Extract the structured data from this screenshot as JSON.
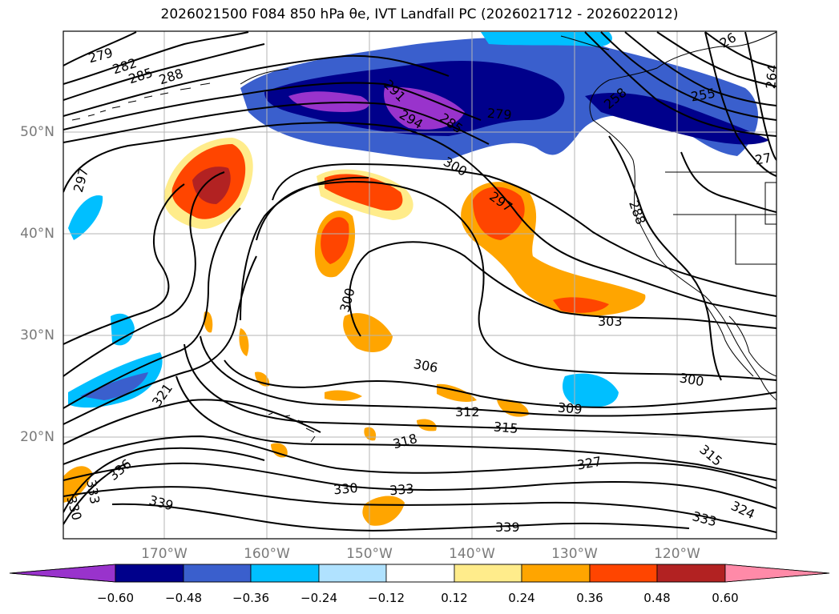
{
  "title": "2026021500 F084 850 hPa θe, IVT Landfall PC (2026021712 - 2026022012)",
  "lat_labels": [
    "50°N",
    "40°N",
    "30°N",
    "20°N"
  ],
  "lon_labels": [
    "170°W",
    "160°W",
    "150°W",
    "140°W",
    "130°W",
    "120°W"
  ],
  "colorbar": {
    "colors": [
      "#9933cc",
      "#00008b",
      "#3a5fcd",
      "#00bfff",
      "#b0e2ff",
      "#ffffff",
      "#ffec8b",
      "#ffa500",
      "#ff4500",
      "#b22222",
      "#ff8aa8"
    ],
    "tick_labels": [
      "−0.60",
      "−0.48",
      "−0.36",
      "−0.24",
      "−0.12",
      "0.12",
      "0.24",
      "0.36",
      "0.48",
      "0.60"
    ]
  },
  "contour_labels": [
    "279",
    "282",
    "285",
    "288",
    "291",
    "294",
    "285",
    "279",
    "258",
    "255",
    "264",
    "26",
    "27",
    "297",
    "300",
    "297",
    "288",
    "300",
    "303",
    "306",
    "309",
    "312",
    "315",
    "318",
    "321",
    "300",
    "327",
    "315",
    "324",
    "330",
    "333",
    "336",
    "333",
    "330",
    "339",
    "339",
    "333"
  ]
}
